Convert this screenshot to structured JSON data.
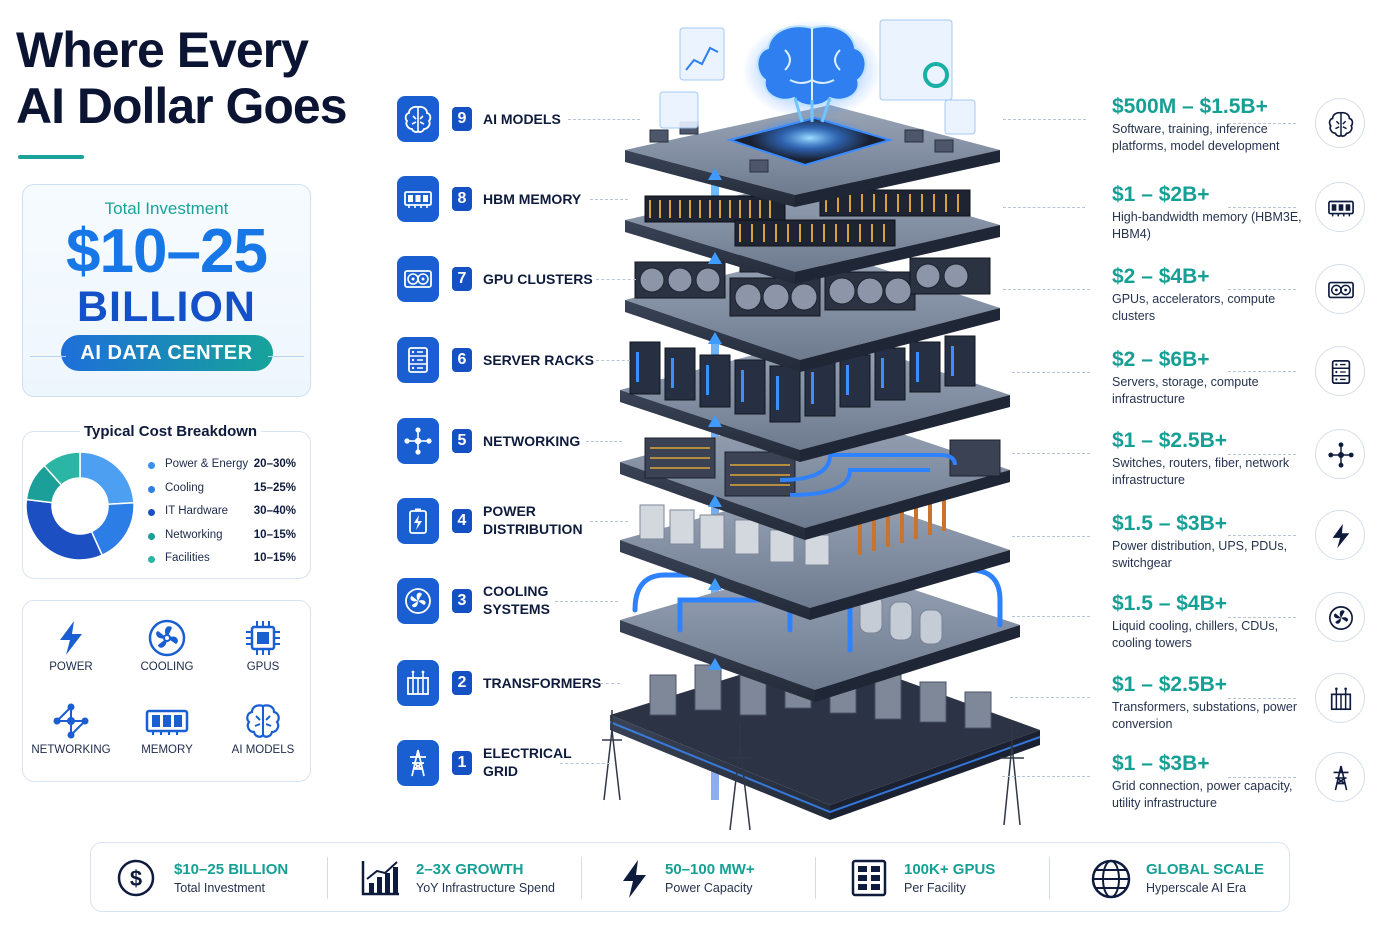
{
  "title": {
    "line1": "Where Every",
    "line2": "AI Dollar Goes"
  },
  "total": {
    "label": "Total Investment",
    "amount": "$10–25",
    "unit": "BILLION",
    "badge": "AI DATA CENTER"
  },
  "breakdown": {
    "title": "Typical Cost Breakdown",
    "items": [
      {
        "name": "Power & Energy",
        "value": "20–30%",
        "color": "#3b8ff0",
        "share": 25
      },
      {
        "name": "Cooling",
        "value": "15–25%",
        "color": "#2f7fe8",
        "share": 20
      },
      {
        "name": "IT Hardware",
        "value": "30–40%",
        "color": "#1c4fc2",
        "share": 35
      },
      {
        "name": "Networking",
        "value": "10–15%",
        "color": "#1b9f98",
        "share": 12
      },
      {
        "name": "Facilities",
        "value": "10–15%",
        "color": "#2bb5a4",
        "share": 12
      }
    ]
  },
  "icon_grid": [
    {
      "label": "POWER",
      "icon": "bolt-icon"
    },
    {
      "label": "COOLING",
      "icon": "fan-icon"
    },
    {
      "label": "GPUS",
      "icon": "chip-icon"
    },
    {
      "label": "NETWORKING",
      "icon": "network-icon"
    },
    {
      "label": "MEMORY",
      "icon": "memory-icon"
    },
    {
      "label": "AI MODELS",
      "icon": "brain-icon"
    }
  ],
  "layers": [
    {
      "num": "9",
      "name": "AI MODELS",
      "icon": "brain-icon",
      "range": "$500M – $1.5B+",
      "desc": "Software, training, inference platforms, model development",
      "cost_icon": "brain-icon"
    },
    {
      "num": "8",
      "name": "HBM MEMORY",
      "icon": "memory-icon",
      "range": "$1 – $2B+",
      "desc": "High-bandwidth memory (HBM3E, HBM4)",
      "cost_icon": "memory-icon"
    },
    {
      "num": "7",
      "name": "GPU CLUSTERS",
      "icon": "gpu-icon",
      "range": "$2 – $4B+",
      "desc": "GPUs, accelerators, compute clusters",
      "cost_icon": "gpu-icon"
    },
    {
      "num": "6",
      "name": "SERVER RACKS",
      "icon": "server-icon",
      "range": "$2 – $6B+",
      "desc": "Servers, storage, compute infrastructure",
      "cost_icon": "server-icon"
    },
    {
      "num": "5",
      "name": "NETWORKING",
      "icon": "network-icon",
      "range": "$1 – $2.5B+",
      "desc": "Switches, routers, fiber, network infrastructure",
      "cost_icon": "network-icon"
    },
    {
      "num": "4",
      "name_lines": [
        "POWER",
        "DISTRIBUTION"
      ],
      "icon": "battery-icon",
      "range": "$1.5 – $3B+",
      "desc": "Power distribution, UPS, PDUs, switchgear",
      "cost_icon": "bolt-icon"
    },
    {
      "num": "3",
      "name_lines": [
        "COOLING",
        "SYSTEMS"
      ],
      "icon": "fan-icon",
      "range": "$1.5 – $4B+",
      "desc": "Liquid cooling, chillers, CDUs, cooling towers",
      "cost_icon": "fan-icon"
    },
    {
      "num": "2",
      "name": "TRANSFORMERS",
      "icon": "transformer-icon",
      "range": "$1 – $2.5B+",
      "desc": "Transformers, substations, power conversion",
      "cost_icon": "transformer-icon"
    },
    {
      "num": "1",
      "name_lines": [
        "ELECTRICAL",
        "GRID"
      ],
      "icon": "pylon-icon",
      "range": "$1 – $3B+",
      "desc": "Grid connection, power capacity, utility infrastructure",
      "cost_icon": "pylon-icon"
    }
  ],
  "stats": [
    {
      "value": "$10–25 BILLION",
      "sub": "Total Investment",
      "icon": "dollar-icon"
    },
    {
      "value": "2–3X GROWTH",
      "sub": "YoY Infrastructure Spend",
      "icon": "growth-chart-icon"
    },
    {
      "value": "50–100 MW+",
      "sub": "Power Capacity",
      "icon": "bolt-icon"
    },
    {
      "value": "100K+ GPUS",
      "sub": "Per Facility",
      "icon": "server-grid-icon"
    },
    {
      "value": "GLOBAL SCALE",
      "sub": "Hyperscale AI Era",
      "icon": "globe-icon"
    }
  ],
  "colors": {
    "accent_blue": "#1a5fd1",
    "accent_teal": "#16a095",
    "title": "#0b1433"
  }
}
